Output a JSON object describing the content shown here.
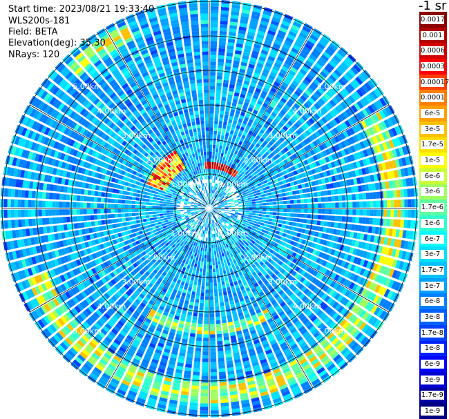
{
  "info": {
    "start_time": "Start time: 2023/08/21 19:33:40",
    "device": "WLS200s-181",
    "field": "Field: BETA",
    "elevation": "Elevation(deg): 35.30",
    "nrays": "NRays: 120"
  },
  "colorbar": {
    "unit": "-1 sr",
    "labels": [
      "0.0017",
      "0.001",
      "0.0006",
      "0.0003",
      "0.00017",
      "0.0001",
      "6e-5",
      "3e-5",
      "1.7e-5",
      "1e-5",
      "6e-6",
      "3e-6",
      "1.7e-6",
      "1e-6",
      "6e-7",
      "3e-7",
      "1.7e-7",
      "1e-7",
      "6e-8",
      "3e-8",
      "1.7e-8",
      "1e-8",
      "6e-9",
      "3e-9",
      "1.7e-9",
      "1e-9"
    ],
    "colors": [
      "#8b0000",
      "#b00000",
      "#d40000",
      "#ff0000",
      "#ff4000",
      "#ff8000",
      "#ffa000",
      "#ffc000",
      "#ffe000",
      "#ffff00",
      "#c8ff38",
      "#a0ff60",
      "#60ffa0",
      "#30ffd0",
      "#00ffff",
      "#00e0ff",
      "#00c0ff",
      "#00a0ff",
      "#0080ff",
      "#0060ff",
      "#0040ff",
      "#0020ff",
      "#0000ff",
      "#0000d0",
      "#0000a0",
      "#000080"
    ]
  },
  "chart_data": {
    "type": "heatmap",
    "projection": "polar (PPI scan)",
    "field": "BETA",
    "elevation_deg": 35.3,
    "nrays": 120,
    "range_rings_km": [
      1.0,
      2.0,
      3.0,
      4.0,
      5.0
    ],
    "range_ring_labels": [
      "1.00km",
      "2.00km",
      "3.00km",
      "4.00km",
      "5.00km"
    ],
    "spokes_deg": [
      0,
      30,
      60,
      90,
      120,
      150,
      180,
      210,
      240,
      270,
      300,
      330
    ],
    "max_range_km": 6.0,
    "color_scale": "log",
    "value_range": [
      1e-09,
      0.0017
    ],
    "background_level": "1e-8 to 3e-8",
    "features": [
      {
        "description": "high-backscatter arc",
        "azimuth_deg": [
          355,
          40
        ],
        "range_km": [
          1.1,
          1.3
        ],
        "level": "0.0003 to 0.0017"
      },
      {
        "description": "high-backscatter arc",
        "azimuth_deg": [
          290,
          330
        ],
        "range_km": [
          1.3,
          1.9
        ],
        "level": "1e-5 to 0.0003"
      },
      {
        "description": "enhanced ring",
        "azimuth_deg": [
          60,
          250
        ],
        "range_km": [
          5.0,
          5.6
        ],
        "level": "1e-6 to 1e-5"
      },
      {
        "description": "enhanced arc",
        "azimuth_deg": [
          150,
          210
        ],
        "range_km": [
          3.3,
          3.6
        ],
        "level": "1e-6 to 1e-5"
      },
      {
        "description": "enhanced arc",
        "azimuth_deg": [
          315,
          335
        ],
        "range_km": [
          5.3,
          5.8
        ],
        "level": "1e-6 to 1e-5"
      }
    ]
  }
}
